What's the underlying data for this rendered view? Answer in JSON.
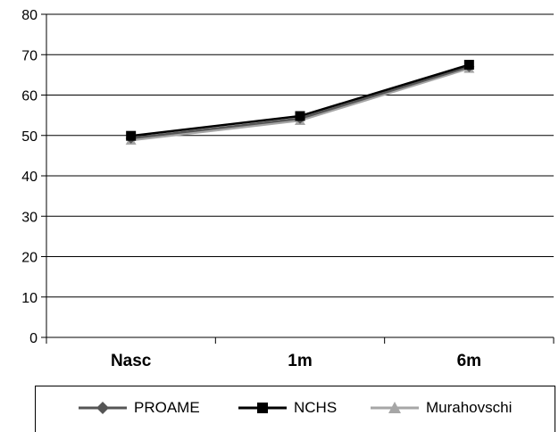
{
  "chart_data": {
    "type": "line",
    "title": "",
    "xlabel": "",
    "ylabel": "",
    "categories": [
      "Nasc",
      "1m",
      "6m"
    ],
    "ylim": [
      0,
      80
    ],
    "yticks": [
      "0",
      "10",
      "20",
      "30",
      "40",
      "50",
      "60",
      "70",
      "80"
    ],
    "grid": true,
    "legend_position": "bottom",
    "series": [
      {
        "name": "PROAME",
        "values": [
          49.3,
          54.2,
          67.0
        ],
        "color": "#555555",
        "marker": "diamond"
      },
      {
        "name": "NCHS",
        "values": [
          49.9,
          54.8,
          67.5
        ],
        "color": "#000000",
        "marker": "square"
      },
      {
        "name": "Murahovschi",
        "values": [
          48.8,
          53.7,
          66.6
        ],
        "color": "#a6a6a6",
        "marker": "triangle"
      }
    ]
  }
}
